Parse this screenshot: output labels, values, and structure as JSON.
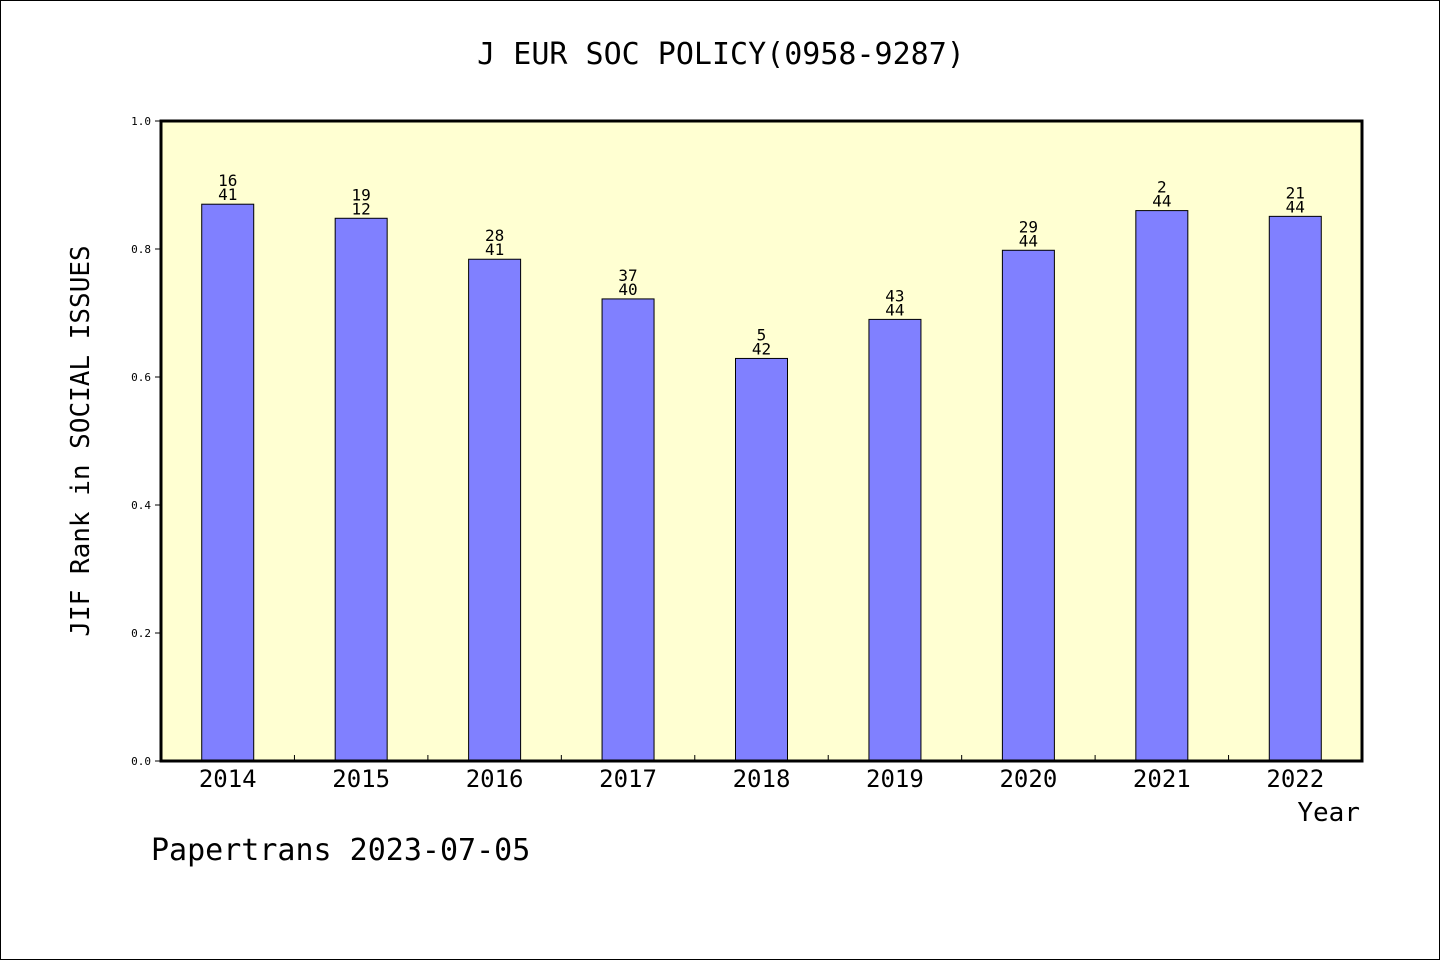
{
  "chart_data": {
    "type": "bar",
    "title": "J EUR SOC POLICY(0958-9287)",
    "xlabel": "Year",
    "ylabel": "JIF Rank in SOCIAL ISSUES",
    "ylim": [
      0,
      1.0
    ],
    "yticks": [
      "0.0",
      "0.2",
      "0.4",
      "0.6",
      "0.8",
      "1.0"
    ],
    "categories": [
      "2014",
      "2015",
      "2016",
      "2017",
      "2018",
      "2019",
      "2020",
      "2021",
      "2022"
    ],
    "values": [
      0.87,
      0.848,
      0.784,
      0.722,
      0.629,
      0.69,
      0.798,
      0.86,
      0.851
    ],
    "labels_top": [
      "16",
      "19",
      "28",
      "37",
      "5",
      "43",
      "29",
      "2",
      "21"
    ],
    "labels_bottom": [
      "41",
      "12",
      "41",
      "40",
      "42",
      "44",
      "44",
      "44",
      "44"
    ],
    "grid": false,
    "legend": "none",
    "colors": {
      "bar_fill": "#8080ff",
      "plot_background": "#ffffd2",
      "axis": "#000000"
    }
  },
  "footer": "Papertrans 2023-07-05"
}
